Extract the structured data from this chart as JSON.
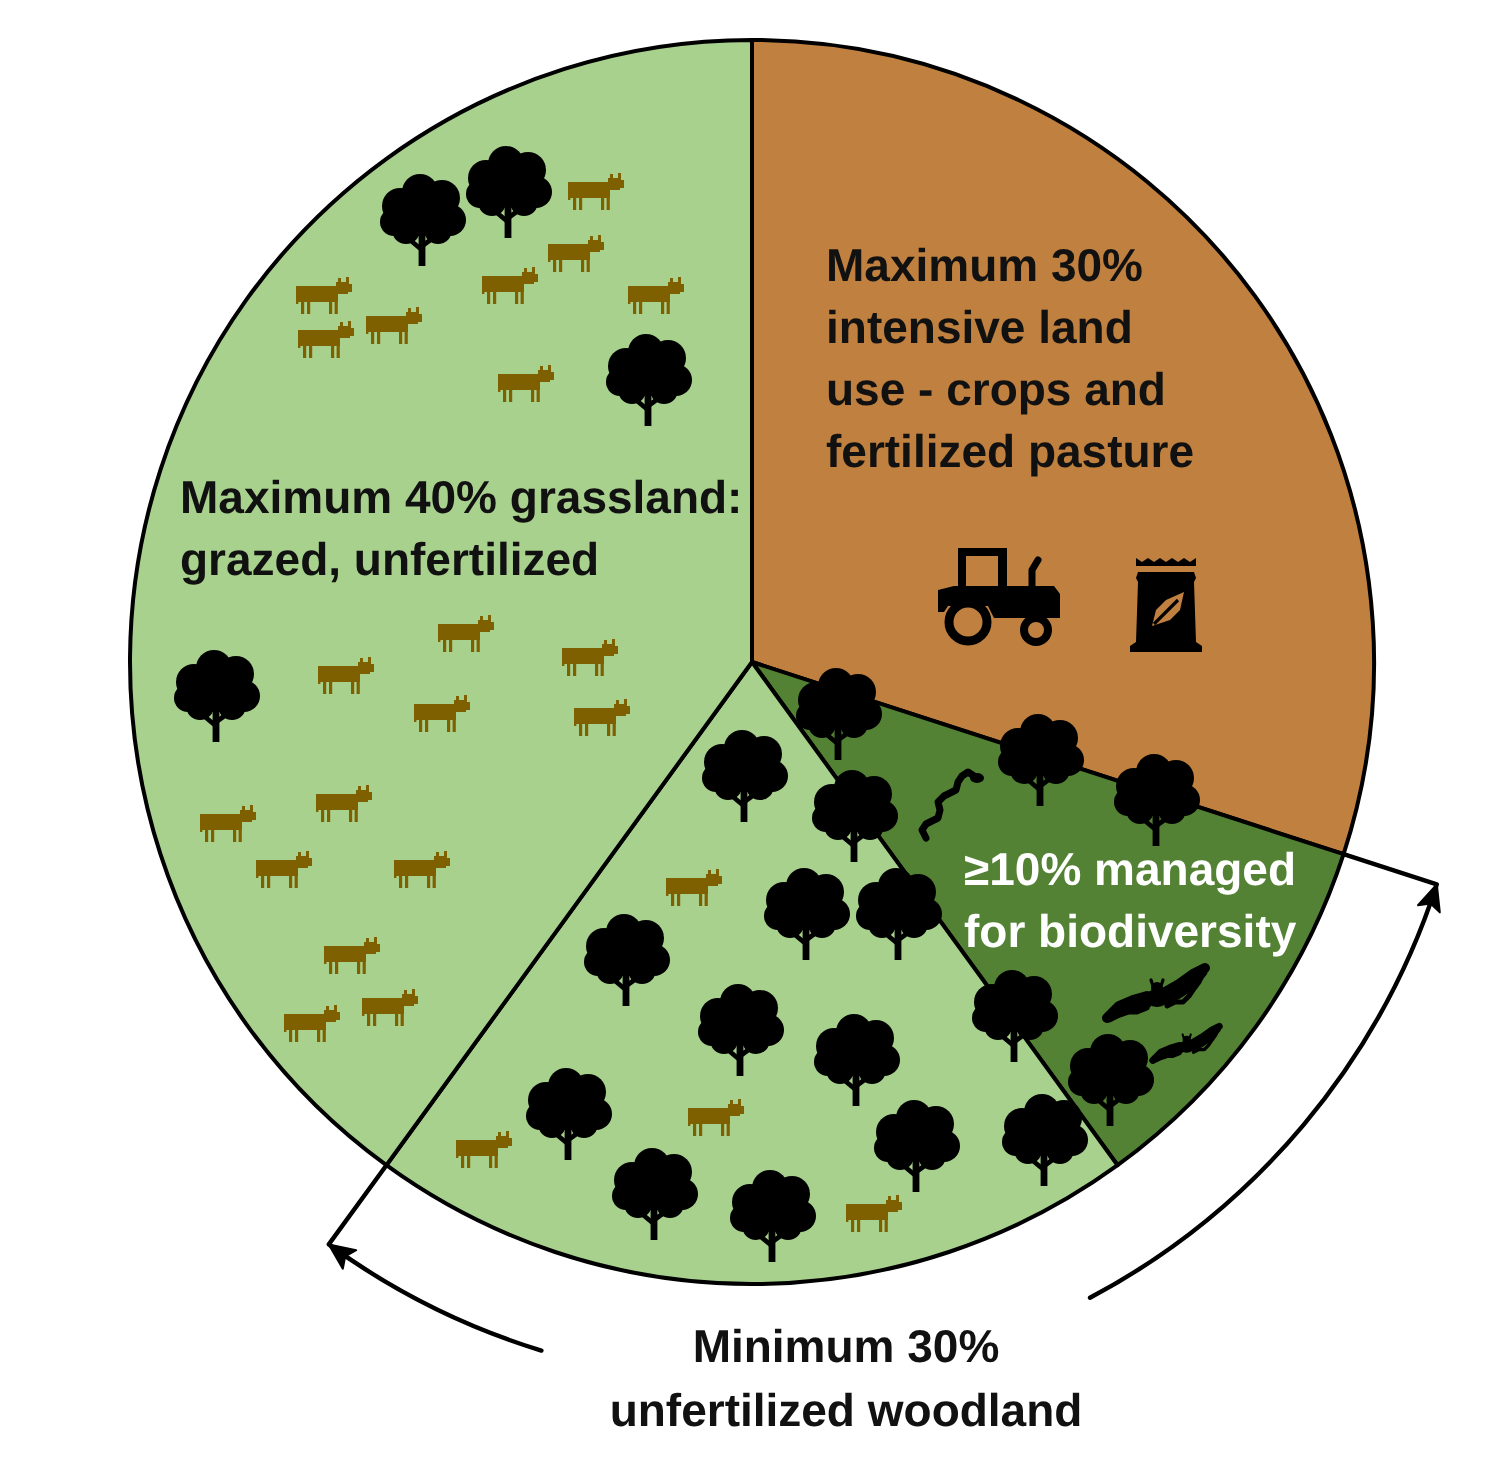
{
  "chart_data": {
    "type": "pie",
    "categories": [
      "Maximum 30% intensive land use - crops and fertilized pasture",
      "≥10% managed for biodiversity",
      null,
      "Maximum 40% grassland: grazed, unfertilized"
    ],
    "values": [
      30,
      10,
      20,
      40
    ],
    "colors": [
      "#c0803f",
      "#548235",
      "#a9d18e",
      "#a9d18e"
    ],
    "annotations": [
      "Minimum 30% unfertilized woodland"
    ]
  }
}
